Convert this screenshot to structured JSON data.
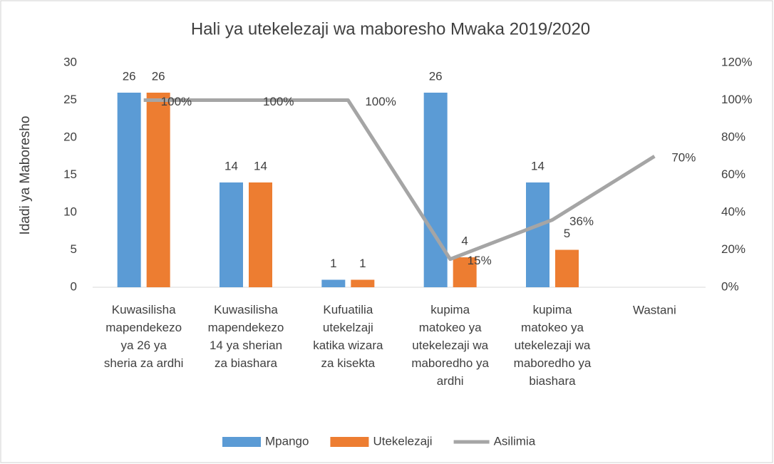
{
  "chart_data": {
    "type": "bar",
    "title": "Hali ya utekelezaji wa maboresho Mwaka 2019/2020",
    "y_label": "Idadi ya Maboresho",
    "categories": [
      "Kuwasilisha\nmapendekezo\nya 26 ya\nsheria za ardhi",
      "Kuwasilisha\nmapendekezo\n14 ya sherian\nza biashara",
      "Kufuatilia\nutekelzaji\nkatika wizara\nza kisekta",
      "kupima\nmatokeo ya\nutekelezaji wa\nmaboredho ya\nardhi",
      "kupima\nmatokeo ya\nutekelezaji wa\nmaboredho ya\nbiashara",
      "Wastani"
    ],
    "series": [
      {
        "name": "Mpango",
        "color": "#5b9bd5",
        "type": "bar",
        "values": [
          26,
          14,
          1,
          26,
          14,
          null
        ]
      },
      {
        "name": "Utekelezaji",
        "color": "#ed7d31",
        "type": "bar",
        "values": [
          26,
          14,
          1,
          4,
          5,
          null
        ]
      },
      {
        "name": "Asilimia",
        "color": "#a5a5a5",
        "type": "line",
        "axis": "y2",
        "values": [
          100,
          100,
          100,
          15,
          36,
          70
        ],
        "value_labels": [
          "100%",
          "100%",
          "100%",
          "15%",
          "36%",
          "70%"
        ]
      }
    ],
    "ylim": [
      0,
      30
    ],
    "yticks": [
      0,
      5,
      10,
      15,
      20,
      25,
      30
    ],
    "y2lim": [
      0,
      120
    ],
    "y2ticks": [
      {
        "value": 0,
        "label": "0%"
      },
      {
        "value": 20,
        "label": "20%"
      },
      {
        "value": 40,
        "label": "40%"
      },
      {
        "value": 60,
        "label": "60%"
      },
      {
        "value": 80,
        "label": "80%"
      },
      {
        "value": 100,
        "label": "100%"
      },
      {
        "value": 120,
        "label": "120%"
      }
    ],
    "legend": "bottom"
  }
}
